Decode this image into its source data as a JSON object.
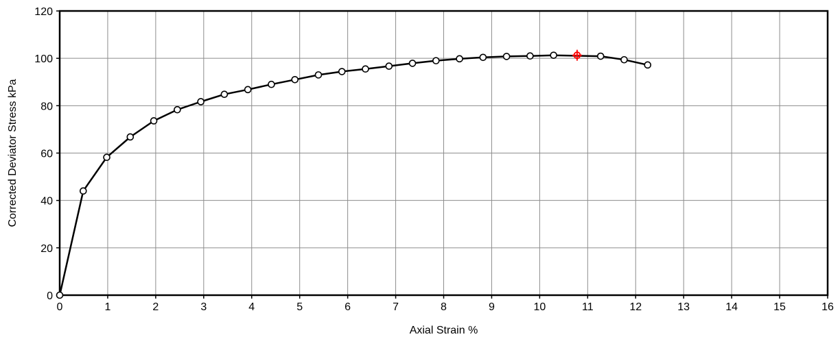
{
  "chart_data": {
    "type": "line",
    "title": "",
    "xlabel": "Axial Strain  %",
    "ylabel": "Corrected Deviator Stress  kPa",
    "xlim": [
      0,
      16
    ],
    "ylim": [
      0,
      120
    ],
    "x_ticks": [
      "0",
      "1",
      "2",
      "3",
      "4",
      "5",
      "6",
      "7",
      "8",
      "9",
      "10",
      "11",
      "12",
      "13",
      "14",
      "15",
      "16"
    ],
    "y_ticks": [
      "0",
      "20",
      "40",
      "60",
      "80",
      "100",
      "120"
    ],
    "grid": true,
    "legend": "none",
    "series": [
      {
        "color": "#000000",
        "marker": "open-circle",
        "points": [
          [
            0,
            0
          ],
          [
            0.49,
            44
          ],
          [
            0.98,
            58.2
          ],
          [
            1.47,
            66.8
          ],
          [
            1.96,
            73.6
          ],
          [
            2.45,
            78.3
          ],
          [
            2.94,
            81.7
          ],
          [
            3.43,
            84.8
          ],
          [
            3.92,
            86.8
          ],
          [
            4.41,
            89
          ],
          [
            4.9,
            91
          ],
          [
            5.39,
            93
          ],
          [
            5.88,
            94.4
          ],
          [
            6.37,
            95.5
          ],
          [
            6.86,
            96.7
          ],
          [
            7.35,
            97.9
          ],
          [
            7.84,
            99
          ],
          [
            8.33,
            99.8
          ],
          [
            8.82,
            100.4
          ],
          [
            9.31,
            100.8
          ],
          [
            9.8,
            101
          ],
          [
            10.29,
            101.3
          ],
          [
            11.27,
            100.9
          ],
          [
            11.76,
            99.4
          ],
          [
            12.25,
            97.2
          ]
        ]
      }
    ],
    "peak": {
      "x": 10.78,
      "y": 101.3,
      "color": "#ff0000"
    }
  }
}
